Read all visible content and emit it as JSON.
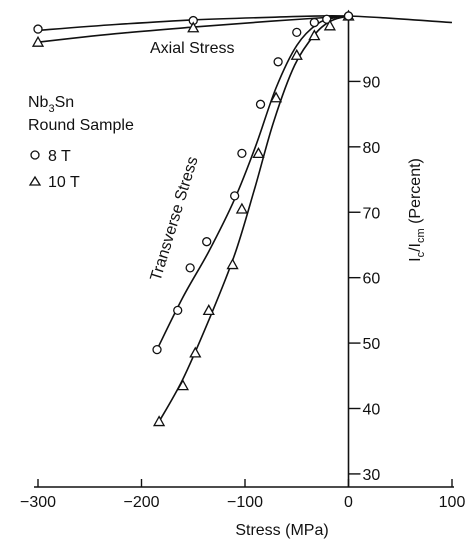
{
  "chart_data": {
    "type": "scatter",
    "xlabel": "Stress (MPa)",
    "ylabel": "I_c/I_cm (Percent)",
    "ylabel_parts": {
      "main": "I",
      "sub1": "c",
      "mid": "/I",
      "sub2": "cm",
      "suffix": " (Percent)"
    },
    "xlim": [
      -300,
      100
    ],
    "ylim": [
      28,
      100
    ],
    "x_ticks": [
      -300,
      -200,
      -100,
      0,
      100
    ],
    "x_tick_labels": [
      "−300",
      "−200",
      "−100",
      "0",
      "100"
    ],
    "y_ticks": [
      30,
      40,
      50,
      60,
      70,
      80,
      90
    ],
    "y_tick_labels": [
      "30",
      "40",
      "50",
      "60",
      "70",
      "80",
      "90"
    ],
    "legend": {
      "title_line1_main": "Nb",
      "title_line1_sub": "3",
      "title_line1_tail": "Sn",
      "title_line2": "Round Sample",
      "entries": [
        {
          "marker": "circle",
          "label": "8 T"
        },
        {
          "marker": "triangle",
          "label": "10 T"
        }
      ]
    },
    "annotations": {
      "axial": "Axial Stress",
      "transverse": "Transverse Stress"
    },
    "series": [
      {
        "marker": "circle",
        "field_T": 8,
        "test": "axial",
        "x": [
          -300,
          -150,
          0
        ],
        "y": [
          98,
          99.3,
          100
        ]
      },
      {
        "marker": "triangle",
        "field_T": 10,
        "test": "axial",
        "x": [
          -300,
          -150,
          0
        ],
        "y": [
          96,
          98.2,
          100
        ]
      },
      {
        "marker": "circle",
        "field_T": 8,
        "test": "transverse",
        "x": [
          -185,
          -165,
          -153,
          -137,
          -110,
          -103,
          -85,
          -68,
          -50,
          -33,
          -21,
          0
        ],
        "y": [
          49,
          55,
          61.5,
          65.5,
          72.5,
          79,
          86.5,
          93,
          97.5,
          99,
          99.5,
          100
        ]
      },
      {
        "marker": "triangle",
        "field_T": 10,
        "test": "transverse",
        "x": [
          -183,
          -160,
          -148,
          -135,
          -112,
          -103,
          -87,
          -70,
          -50,
          -33,
          -18
        ],
        "y": [
          38,
          43.5,
          48.5,
          55,
          62,
          70.5,
          79,
          87.5,
          94,
          97,
          98.5
        ]
      }
    ],
    "curves": [
      {
        "test": "axial",
        "x": [
          -300,
          -225,
          -150,
          -75,
          0,
          100
        ],
        "y": [
          97.8,
          98.7,
          99.4,
          99.8,
          100,
          99.0
        ]
      },
      {
        "test": "axial",
        "x": [
          -300,
          -225,
          -150,
          -75,
          0
        ],
        "y": [
          96.0,
          97.3,
          98.3,
          99.2,
          100
        ]
      },
      {
        "test": "transverse",
        "x": [
          -185,
          -160,
          -135,
          -110,
          -90,
          -70,
          -50,
          -30,
          -12,
          0
        ],
        "y": [
          49,
          57,
          64,
          72,
          80,
          89,
          95.5,
          98.8,
          99.8,
          100
        ]
      },
      {
        "test": "transverse",
        "x": [
          -183,
          -160,
          -135,
          -110,
          -90,
          -72,
          -52,
          -32,
          -16,
          0
        ],
        "y": [
          38,
          44.5,
          53.5,
          63.5,
          74,
          84,
          92.5,
          97.3,
          99.3,
          100
        ]
      }
    ],
    "grid": false
  }
}
